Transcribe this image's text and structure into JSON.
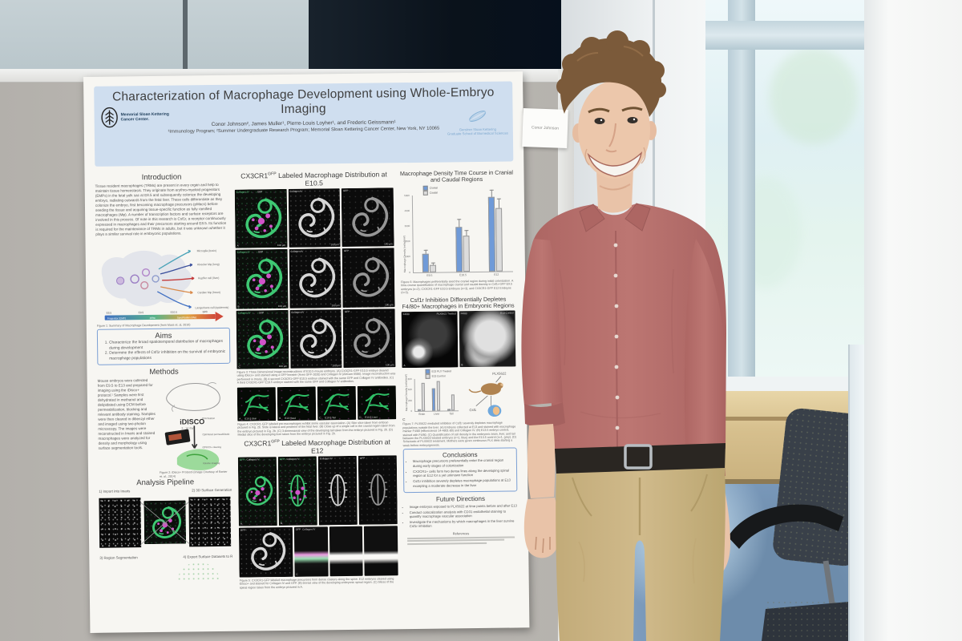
{
  "scene": {
    "name_card": {
      "name": "Conor Johnson"
    },
    "colors": {
      "shirt": "#b8716d",
      "pants": "#cdb687",
      "carpet": "#7e9dbf",
      "partition": "#b6b3ae",
      "poster_header": "#cfdeef",
      "chart_blue": "#6f9ad8"
    }
  },
  "poster": {
    "header": {
      "title": "Characterization of Macrophage Development using Whole-Embryo Imaging",
      "authors": "Conor Johnson², James Muller¹, Pierre-Louis Loyher¹, and Frederic Geissmann¹",
      "affiliations": "¹Immunology Program; ²Summer Undergraduate Research Program; Memorial Sloan Kettering Cancer Center, New York, NY 10065",
      "logo_left_line1": "Memorial Sloan Kettering",
      "logo_left_line2": "Cancer Center.",
      "logo_right_line1": "Gerstner Sloan Kettering",
      "logo_right_line2": "Graduate School of Biomedical Sciences"
    },
    "intro": {
      "heading": "Introduction",
      "body": "Tissue resident macrophages (TRMs) are present in every organ and help to maintain tissue homeostasis. They originate from erythro-myeloid progenitors (EMPs) in the fetal yolk sac at E8.5 and subsequently colonize the developing embryo, radiating outwards from the fetal liver. These cells differentiate as they colonize the embryo, first becoming macrophage precursors (pMacs) before seeding the tissue and acquiring tissue-specific function as fully ramified macrophages (Mφ). A number of transcription factors and surface receptors are involved in this process. Of note in this research is Csf1r, a receptor continuously expressed in macrophages and their precursors starting around E8.5. Its function is required for the maintenance of TRMs in adults, but it was unknown whether it plays a similar survival role in embryonic populations.",
      "fig1_caption": "Figure 1: Summary of Macrophage Development (from Mass et. al, 2016)",
      "fig1": {
        "organs": [
          "Microglia (brain)",
          "Alveolar Mφ (lung)",
          "Kupffer cell (liver)",
          "Cardiac Mφ (heart)",
          "Langerhans cell (epidermis)"
        ],
        "ticks": [
          "E8.5",
          "E9.5",
          "E10.5",
          "Birth"
        ],
        "segments": [
          "Progenitor (EMP)",
          "pMac",
          "Specification (Mφ)"
        ]
      }
    },
    "aims": {
      "heading": "Aims",
      "items": [
        "Characterize the broad spatiotemporal distribution of macrophages during development",
        "Determine the effects of Csf1r inhibition on the survival of embryonic macrophage populations"
      ]
    },
    "methods": {
      "heading": "Methods",
      "body": "Mouse embryos were collected from E9.5 to E13 and prepared for imaging using the iDisco+ protocol.¹ Samples were first dehydrated in methanol and delipidated using DCM before permeabilization, blocking and relevant antibody staining. Samples were then cleared in dibenzyl ether and imaged using two-photon microscopy. The images were reconstructed in Imaris and stained macrophages were analyzed for density and morphology using surface segmentation tools.",
      "idisco": "iDISCO",
      "idisco_sub": "3 - 14 days",
      "steps": [
        "PFA fixation",
        "Optimized permeabilization, blocking and immunolabeling",
        "iDISCO+ clearing",
        "Volume imaging"
      ],
      "fig2_caption": "Figure 2: iDisco+ Protocol (Image Courtesy of Renier et. al., 2014)"
    },
    "pipeline": {
      "heading": "Analysis Pipeline",
      "step1": "1) Import into Imaris",
      "step2": "2) 3D Surface Generation",
      "step3": "3) Region Segmentation",
      "step4": "4) Export Surface Datasets to R"
    },
    "e105": {
      "pre": "CX3CR1",
      "sup": "GFP",
      "post": " Labeled Macrophage Distribution at E10.5",
      "panels": [
        {
          "style": "p-merge",
          "tl": "Collagen IV",
          "tl2": "GFP",
          "bl": "A",
          "br": "100 μm"
        },
        {
          "style": "p-gray",
          "tl": "Collagen IV",
          "br": "100 μm"
        },
        {
          "style": "p-gray-dim",
          "tl": "GFP",
          "br": "100 μm"
        },
        {
          "style": "p-merge",
          "tl": "Collagen IV",
          "tl2": "GFP",
          "bl": "B",
          "br": "100 μm"
        },
        {
          "style": "p-gray",
          "tl": "Collagen IV",
          "br": "100 μm"
        },
        {
          "style": "p-gray-dim",
          "tl": "GFP",
          "br": "100 μm"
        },
        {
          "style": "p-merge",
          "tl": "Collagen IV",
          "tl2": "GFP",
          "bl": "C",
          "br": "100 μm"
        },
        {
          "style": "p-gray",
          "tl": "Collagen IV",
          "br": "100 μm"
        },
        {
          "style": "p-gray-dim",
          "tl": "GFP",
          "br": "100 μm"
        }
      ],
      "fig3_caption": "Figure 3: Three Dimensional image reconstructions of E10.5 mouse embryos. (A) CX3CR1-GFP E10.5 embryo cleared using iDisco+ and stained using a GFP booster (Aves GFP-1020) and Collagen IV (AbCam 6586). Image reconstruction was performed in Imaris. (B) A second CX3CR1-GFP E10.5 embryo stained with the same GFP and Collagen IV antibodies. (C) A third CX3CR1-GFP E10.5 embryo stained with the same GFP and Collagen IV antibodies."
    },
    "fig4": {
      "panels": [
        {
          "style": "p-ves",
          "bl": "A",
          "lab": "E10.5 Skin"
        },
        {
          "style": "p-ves",
          "bl": "B",
          "lab": "E10 Head"
        },
        {
          "style": "p-ves",
          "bl": "C",
          "lab": "E10.5 Tail"
        },
        {
          "style": "p-ves",
          "bl": "D",
          "lab": "E10.5 Liver"
        }
      ],
      "caption": "Figure 4: CX3CR1-GFP labeled pre-macrophages exhibit some vascular association. (A) Skin slice taken from embryo pictured in Fig. 2b. Slide is lateral and posterior of the fetal liver. (B) Close up of a single cell in the cranial region taken from the embryo pictured in Fig. 2b. (C) 3-dimensional view of the developing tail taken from the embryo pictured in Fig. 2b. (D) Medial slice of the developing liver taken from the embryo pictured in Fig. 2b."
    },
    "e12": {
      "pre": "CX3CR1",
      "sup": "GFP",
      "post": " Labeled Macrophage Distribution at E12",
      "panels_row1": [
        {
          "style": "p-merge",
          "tl": "GFP",
          "tl2": "Collagen IV",
          "bl": "A"
        },
        {
          "style": "p-merge-dorsal",
          "tl": "GFP",
          "tl2": "Collagen IV",
          "bl": "B"
        },
        {
          "style": "p-gray-dorsal",
          "tl": "Collagen IV"
        },
        {
          "style": "p-gray-dorsal-dim",
          "tl": "GFP"
        }
      ],
      "panels_row2": [
        {
          "style": "p-gray-big",
          "tl": "GFP"
        },
        {
          "style": "p-strip",
          "bl": "C",
          "tl": "GFP",
          "tl2": "Collagen IV"
        },
        {
          "style": "p-strip-gray"
        },
        {
          "style": "p-strip-gray"
        }
      ],
      "fig5_caption": "Figure 5: CX3CR1-GFP labeled macrophage precursors form dense clusters along the spine. E12 embryos cleared using iDisco+ and stained for Collagen IV and GFP. (B) Dorsal view of the developing embryonic spinal region. (C) Slices of the spinal region taken from the embryo pictured in A."
    },
    "density": {
      "heading": "Macrophage Density Time Course in Cranial and Caudal Regions",
      "fig6_caption": "Figure 6: Macrophages preferentially seed the cranial region during initial colonization. A time-course quantification of macrophage cranial and caudal density in Csf1r-GFP E9.5 embryos (n=2), CX3CR1-GFP E10.5 Embryos (n=3), and CX3CR1-GFP E12 Embryos (n=3)."
    },
    "csf1r": {
      "heading": "Csf1r Inhibition Differentially Depletes F4/80+ Macrophages in Embryonic Regions",
      "panelA": {
        "tl": "F4/80",
        "tr": "PLX5622 Treated",
        "bl": "A"
      },
      "panelB": {
        "tl": "F4/80",
        "tr": "E13 Control",
        "bl": "B"
      },
      "panelC_label": "C",
      "panelD_label": "D",
      "schematic": {
        "plx": "PLX5622",
        "csf1": "Csf1"
      },
      "fig7_caption": "Figure 7: PLX5622 mediated inhibition of Csf1r severely depletes macrophage populations outside the liver. (A) Embryos collected at E13 and stained with macrophage marker F4/80 (eBioscience 14-4801-80) and Collagen IV. (B) E13.5 embryo control, stained with F4/80. (C) Quantification of cell density in the embryonic brain, liver, and tail between the PLX5622-treated embryos (n=2, blue) and the E13.5 control (n=1, grey). (D) Schematic of PLX5622 treatment. Mothers were given continuous PLX diets starting a week before embryogenesis."
    },
    "conclusions": {
      "heading": "Conclusions",
      "items": [
        "Macrophage precursors preferentially enter the cranial region during early stages of colonization",
        "CX3CR1+ cells form two dense lines along the developing spinal region at E12 for a yet unknown function",
        "Csf1r inhibition severely depletes macrophage populations at E13 excepting a moderate decrease in the liver"
      ]
    },
    "future": {
      "heading": "Future Directions",
      "items": [
        "Image embryos exposed to PLX5622 at time points before and after E13",
        "Conduct colocalization analysis with CD31 endothelial staining to quantify macrophage vascular association",
        "Investigate the mechanisms by which macrophages in the liver survive Csf1r inhibition"
      ]
    },
    "references_heading": "References",
    "scalebar": "100 μm"
  },
  "chart_data": [
    {
      "type": "bar",
      "title": "Macrophage Density Time Course in Cranial and Caudal Regions",
      "categories": [
        "E9.5",
        "E10.5",
        "E12"
      ],
      "series": [
        {
          "name": "Cranial",
          "color": "#6f9ad8",
          "values": [
            1200,
            2900,
            4800
          ],
          "errors": [
            250,
            500,
            500
          ]
        },
        {
          "name": "Caudal",
          "color": "#dcdcdc",
          "values": [
            450,
            2300,
            4100
          ],
          "errors": [
            150,
            400,
            600
          ]
        }
      ],
      "ylabel": "Macrophage Density (cells/mm³)",
      "ylim": [
        0,
        5000
      ],
      "ytick": 1000,
      "grid": false,
      "legend_position": "top"
    },
    {
      "type": "bar",
      "title": "F4/80+ cell density: PLX5622 treated vs control (Figure 7C)",
      "categories": [
        "Brain",
        "Liver",
        "Tail"
      ],
      "series": [
        {
          "name": "E13 PLX Treated",
          "color": "#6f9ad8",
          "values": [
            30,
            420,
            25
          ]
        },
        {
          "name": "E13 Control",
          "color": "#dcdcdc",
          "values": [
            520,
            560,
            300
          ]
        }
      ],
      "ylabel": "Macrophage Density (cells/mm³)",
      "ylim": [
        0,
        600
      ],
      "ytick": 200,
      "grid": false,
      "legend_position": "top"
    }
  ]
}
